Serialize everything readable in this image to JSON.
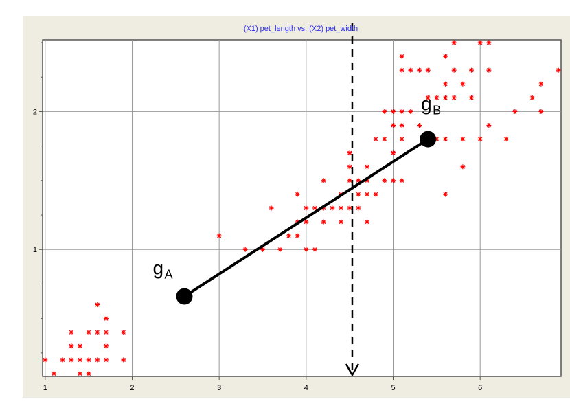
{
  "chart_data": {
    "type": "scatter",
    "title": "(X1) pet_length vs. (X2) pet_width",
    "xlabel": "",
    "ylabel": "",
    "xlim": [
      0.97,
      6.93
    ],
    "ylim": [
      0.08,
      2.52
    ],
    "x_ticks": [
      "1",
      "2",
      "3",
      "4",
      "5",
      "6"
    ],
    "x_tick_values": [
      1,
      2,
      3,
      4,
      5,
      6
    ],
    "y_ticks": [
      "1",
      "2"
    ],
    "y_tick_values": [
      1,
      2
    ],
    "grid": true,
    "colors": {
      "background": "#efece2",
      "plot_area": "#ffffff",
      "grid": "#9a9a9a",
      "points": "#ff0000",
      "title": "#2a2aff",
      "annotation": "#000000"
    },
    "points": [
      [
        1.0,
        0.2
      ],
      [
        1.1,
        0.1
      ],
      [
        1.2,
        0.2
      ],
      [
        1.3,
        0.2
      ],
      [
        1.3,
        0.3
      ],
      [
        1.3,
        0.4
      ],
      [
        1.4,
        0.2
      ],
      [
        1.4,
        0.3
      ],
      [
        1.4,
        0.1
      ],
      [
        1.5,
        0.2
      ],
      [
        1.5,
        0.4
      ],
      [
        1.5,
        0.1
      ],
      [
        1.6,
        0.2
      ],
      [
        1.6,
        0.4
      ],
      [
        1.6,
        0.6
      ],
      [
        1.7,
        0.2
      ],
      [
        1.7,
        0.3
      ],
      [
        1.7,
        0.4
      ],
      [
        1.7,
        0.5
      ],
      [
        1.9,
        0.2
      ],
      [
        1.9,
        0.4
      ],
      [
        3.0,
        1.1
      ],
      [
        3.3,
        1.0
      ],
      [
        3.5,
        1.0
      ],
      [
        3.6,
        1.3
      ],
      [
        3.7,
        1.0
      ],
      [
        3.8,
        1.1
      ],
      [
        3.9,
        1.1
      ],
      [
        3.9,
        1.4
      ],
      [
        3.9,
        1.2
      ],
      [
        4.0,
        1.0
      ],
      [
        4.0,
        1.3
      ],
      [
        4.0,
        1.2
      ],
      [
        4.1,
        1.0
      ],
      [
        4.1,
        1.3
      ],
      [
        4.2,
        1.2
      ],
      [
        4.2,
        1.3
      ],
      [
        4.2,
        1.5
      ],
      [
        4.3,
        1.3
      ],
      [
        4.4,
        1.2
      ],
      [
        4.4,
        1.3
      ],
      [
        4.4,
        1.4
      ],
      [
        4.5,
        1.3
      ],
      [
        4.5,
        1.5
      ],
      [
        4.5,
        1.7
      ],
      [
        4.5,
        1.6
      ],
      [
        4.6,
        1.3
      ],
      [
        4.6,
        1.4
      ],
      [
        4.6,
        1.5
      ],
      [
        4.7,
        1.2
      ],
      [
        4.7,
        1.4
      ],
      [
        4.7,
        1.5
      ],
      [
        4.7,
        1.6
      ],
      [
        4.8,
        1.4
      ],
      [
        4.8,
        1.8
      ],
      [
        4.9,
        1.5
      ],
      [
        4.9,
        1.8
      ],
      [
        4.9,
        2.0
      ],
      [
        5.0,
        1.5
      ],
      [
        5.0,
        1.7
      ],
      [
        5.0,
        1.9
      ],
      [
        5.0,
        2.0
      ],
      [
        5.1,
        1.5
      ],
      [
        5.1,
        1.8
      ],
      [
        5.1,
        1.9
      ],
      [
        5.1,
        2.0
      ],
      [
        5.1,
        2.3
      ],
      [
        5.1,
        2.4
      ],
      [
        5.2,
        2.0
      ],
      [
        5.2,
        2.3
      ],
      [
        5.3,
        2.3
      ],
      [
        5.3,
        1.9
      ],
      [
        5.4,
        2.1
      ],
      [
        5.4,
        2.3
      ],
      [
        5.5,
        1.8
      ],
      [
        5.5,
        2.1
      ],
      [
        5.6,
        1.4
      ],
      [
        5.6,
        1.8
      ],
      [
        5.6,
        2.1
      ],
      [
        5.6,
        2.2
      ],
      [
        5.6,
        2.4
      ],
      [
        5.7,
        2.1
      ],
      [
        5.7,
        2.3
      ],
      [
        5.7,
        2.5
      ],
      [
        5.8,
        1.6
      ],
      [
        5.8,
        2.2
      ],
      [
        5.8,
        1.8
      ],
      [
        5.9,
        2.1
      ],
      [
        5.9,
        2.3
      ],
      [
        6.0,
        1.8
      ],
      [
        6.0,
        2.5
      ],
      [
        6.1,
        1.9
      ],
      [
        6.1,
        2.3
      ],
      [
        6.1,
        2.5
      ],
      [
        6.3,
        1.8
      ],
      [
        6.4,
        2.0
      ],
      [
        6.6,
        2.1
      ],
      [
        6.7,
        2.0
      ],
      [
        6.7,
        2.2
      ],
      [
        6.9,
        2.3
      ]
    ],
    "annotations": {
      "centroid_a": {
        "label": "g",
        "subscript": "A",
        "x": 2.6,
        "y": 0.66
      },
      "centroid_b": {
        "label": "g",
        "subscript": "B",
        "x": 5.4,
        "y": 1.8
      },
      "separator": {
        "x": 4.53
      }
    }
  }
}
